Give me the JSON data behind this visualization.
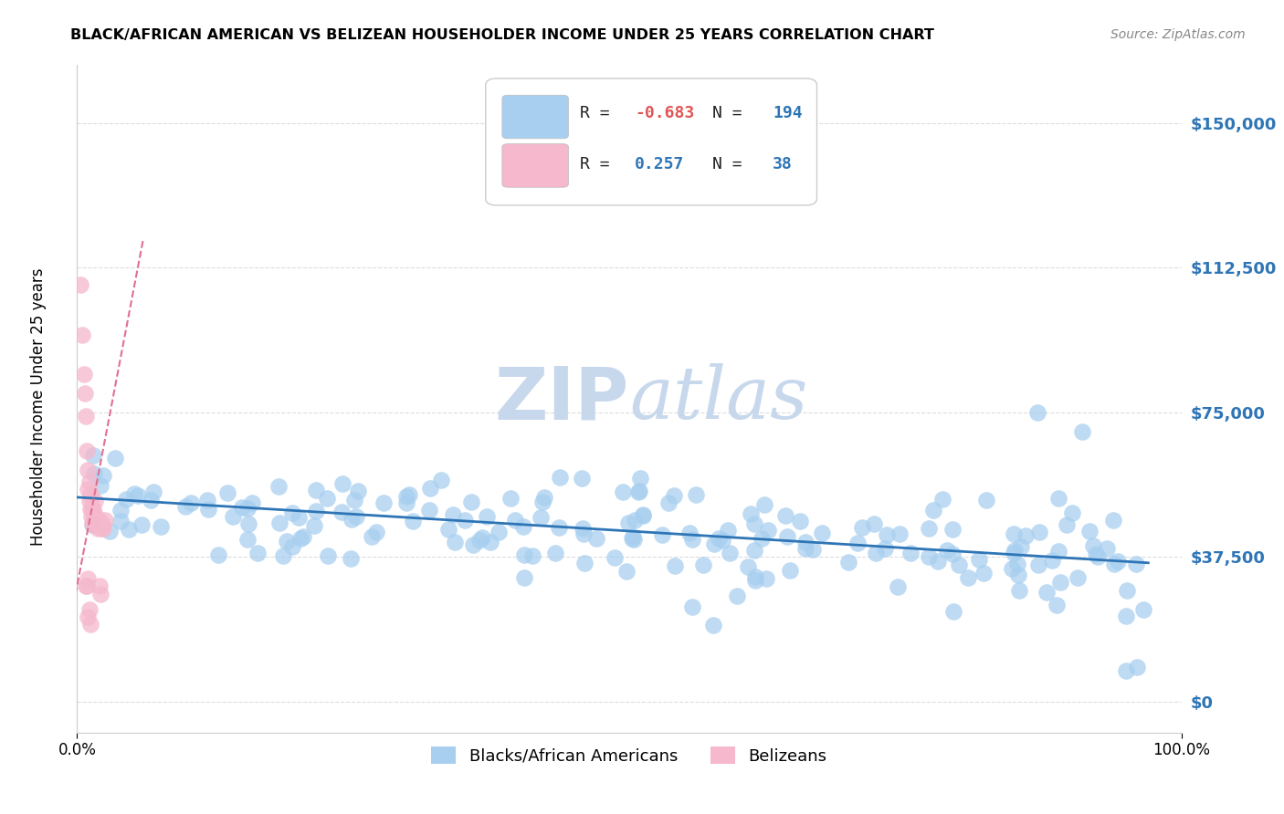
{
  "title": "BLACK/AFRICAN AMERICAN VS BELIZEAN HOUSEHOLDER INCOME UNDER 25 YEARS CORRELATION CHART",
  "source": "Source: ZipAtlas.com",
  "ylabel": "Householder Income Under 25 years",
  "xlim": [
    0,
    1.0
  ],
  "ylim": [
    -8000,
    165000
  ],
  "yticks": [
    0,
    37500,
    75000,
    112500,
    150000
  ],
  "ytick_labels": [
    "$0",
    "$37,500",
    "$75,000",
    "$112,500",
    "$150,000"
  ],
  "legend_R_blue": "-0.683",
  "legend_N_blue": "194",
  "legend_R_pink": "0.257",
  "legend_N_pink": "38",
  "blue_color": "#A8CFF0",
  "pink_color": "#F5B8CC",
  "blue_line_color": "#2E75B6",
  "pink_line_color": "#E07090",
  "watermark_zip": "ZIP",
  "watermark_atlas": "atlas",
  "watermark_color": "#C8D8EC",
  "background_color": "#FFFFFF",
  "grid_color": "#DDDDDD",
  "title_color": "#000000",
  "source_color": "#888888",
  "ytick_color": "#2E75B6",
  "legend_black_color": "#222222",
  "legend_blue_color": "#2E75B6",
  "legend_red_color": "#E05555"
}
